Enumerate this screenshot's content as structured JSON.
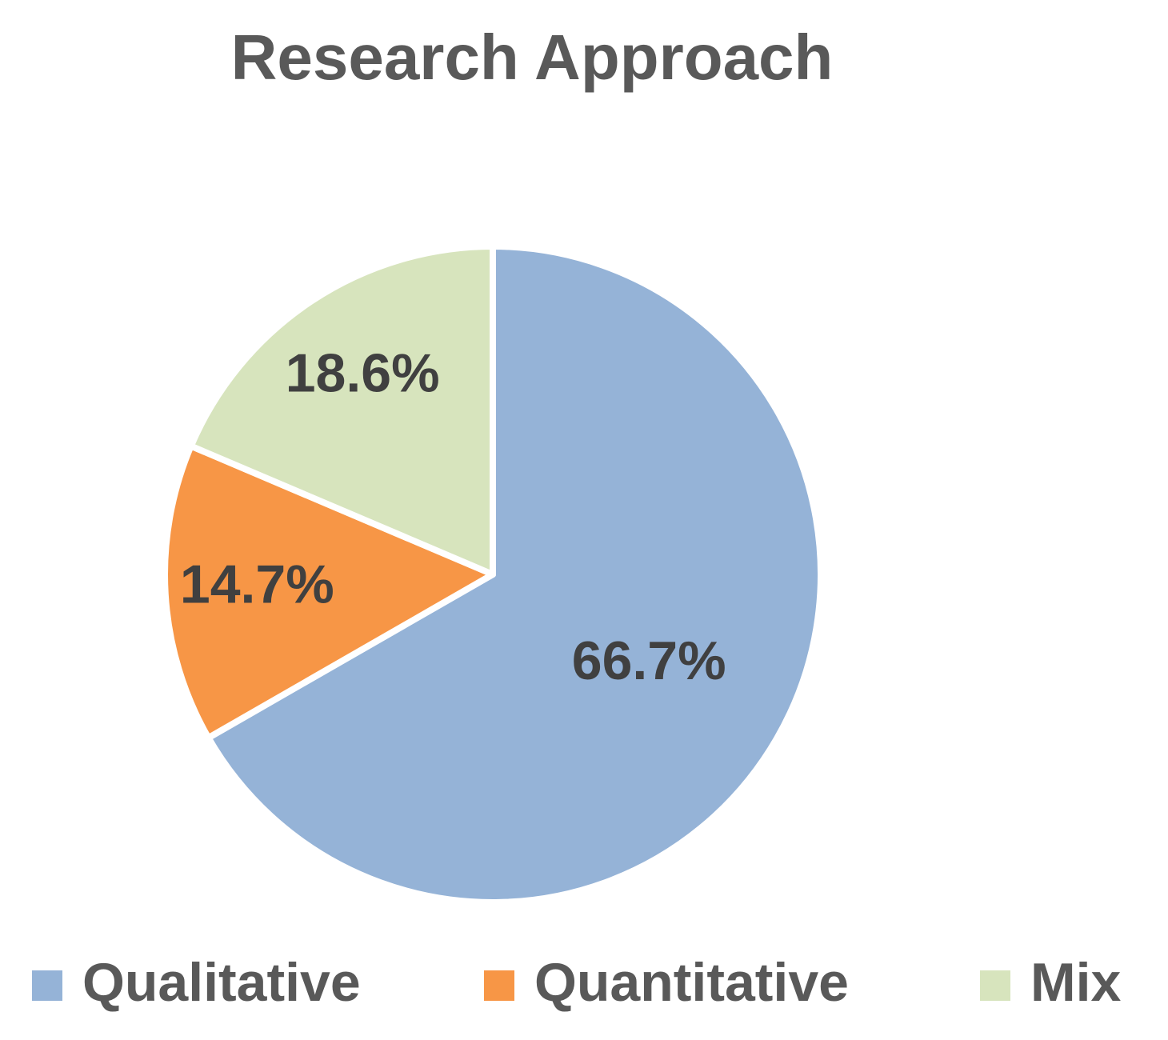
{
  "chart_data": {
    "type": "pie",
    "title": "Research Approach",
    "categories": [
      "Qualitative",
      "Quantitative",
      "Mix"
    ],
    "values": [
      66.7,
      14.7,
      18.6
    ],
    "value_labels": [
      "66.7%",
      "14.7%",
      "18.6%"
    ],
    "colors": [
      "#95b3d7",
      "#f79646",
      "#d7e4bd"
    ],
    "legend": "bottom"
  }
}
